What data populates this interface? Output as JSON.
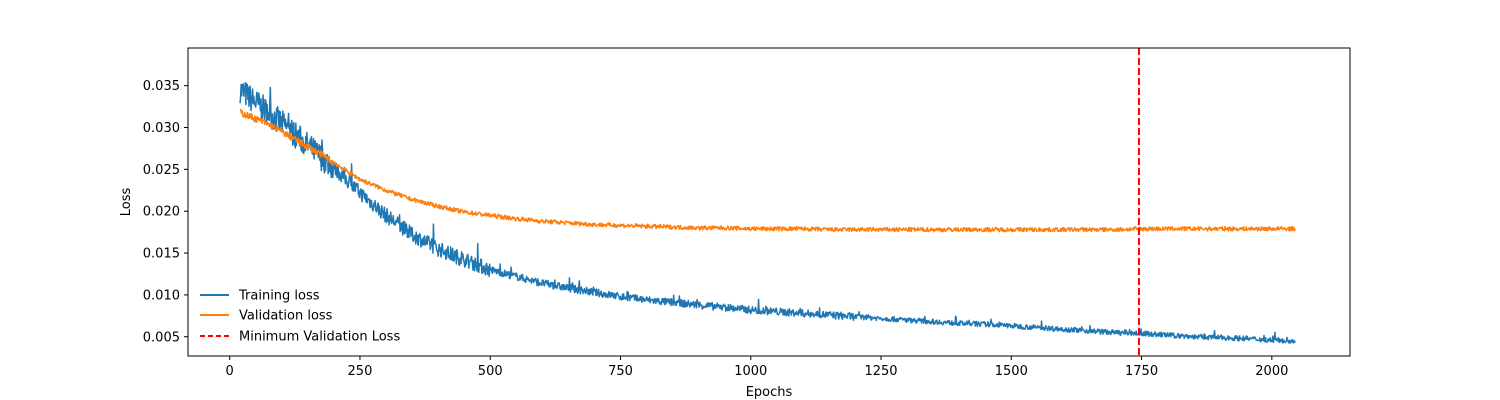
{
  "chart_data": {
    "type": "line",
    "title": "",
    "xlabel": "Epochs",
    "ylabel": "Loss",
    "xlim": [
      -80,
      2150
    ],
    "ylim": [
      0.0027,
      0.0395
    ],
    "xticks": [
      0,
      250,
      500,
      750,
      1000,
      1250,
      1500,
      1750,
      2000
    ],
    "xtick_labels": [
      "0",
      "250",
      "500",
      "750",
      "1000",
      "1250",
      "1500",
      "1750",
      "2000"
    ],
    "yticks": [
      0.005,
      0.01,
      0.015,
      0.02,
      0.025,
      0.03,
      0.035
    ],
    "ytick_labels": [
      "0.005",
      "0.010",
      "0.015",
      "0.020",
      "0.025",
      "0.030",
      "0.035"
    ],
    "grid": false,
    "legend_position": "lower-left",
    "series": [
      {
        "name": "Training loss",
        "color": "#1f77b4",
        "x": [
          20,
          40,
          60,
          80,
          100,
          125,
          150,
          175,
          200,
          250,
          300,
          350,
          400,
          450,
          500,
          550,
          600,
          650,
          700,
          750,
          800,
          850,
          900,
          950,
          1000,
          1050,
          1100,
          1150,
          1200,
          1250,
          1300,
          1350,
          1400,
          1450,
          1500,
          1550,
          1600,
          1650,
          1700,
          1750,
          1800,
          1850,
          1900,
          1950,
          2000,
          2045
        ],
        "y": [
          0.0345,
          0.0335,
          0.0325,
          0.0315,
          0.0305,
          0.0292,
          0.0278,
          0.0265,
          0.0252,
          0.0222,
          0.0195,
          0.0172,
          0.0155,
          0.0142,
          0.013,
          0.0122,
          0.0114,
          0.0108,
          0.0103,
          0.0098,
          0.0094,
          0.0091,
          0.0088,
          0.0085,
          0.0082,
          0.008,
          0.0078,
          0.0076,
          0.0074,
          0.0072,
          0.007,
          0.0068,
          0.0066,
          0.0065,
          0.0063,
          0.0061,
          0.0059,
          0.0057,
          0.0055,
          0.0054,
          0.0052,
          0.005,
          0.0049,
          0.0048,
          0.0046,
          0.0045
        ]
      },
      {
        "name": "Validation loss",
        "color": "#ff7f0e",
        "x": [
          20,
          40,
          60,
          80,
          100,
          125,
          150,
          175,
          200,
          250,
          300,
          350,
          400,
          450,
          500,
          550,
          600,
          650,
          700,
          750,
          800,
          850,
          900,
          950,
          1000,
          1050,
          1100,
          1150,
          1200,
          1250,
          1300,
          1350,
          1400,
          1450,
          1500,
          1550,
          1600,
          1650,
          1700,
          1750,
          1800,
          1850,
          1900,
          1950,
          2000,
          2045
        ],
        "y": [
          0.0318,
          0.0313,
          0.0308,
          0.0302,
          0.0295,
          0.0286,
          0.0277,
          0.0268,
          0.0258,
          0.0238,
          0.0225,
          0.0214,
          0.0206,
          0.0199,
          0.0195,
          0.0191,
          0.0188,
          0.0186,
          0.0184,
          0.0183,
          0.0182,
          0.0181,
          0.018,
          0.018,
          0.0179,
          0.0179,
          0.0179,
          0.0178,
          0.0178,
          0.0178,
          0.0178,
          0.0178,
          0.0178,
          0.0178,
          0.0178,
          0.0178,
          0.0178,
          0.0178,
          0.0178,
          0.0179,
          0.0179,
          0.0179,
          0.0179,
          0.0179,
          0.0179,
          0.0179
        ]
      }
    ],
    "vline": {
      "name": "Minimum Validation Loss",
      "x": 1745,
      "color": "#ff0000",
      "style": "dashed"
    }
  }
}
